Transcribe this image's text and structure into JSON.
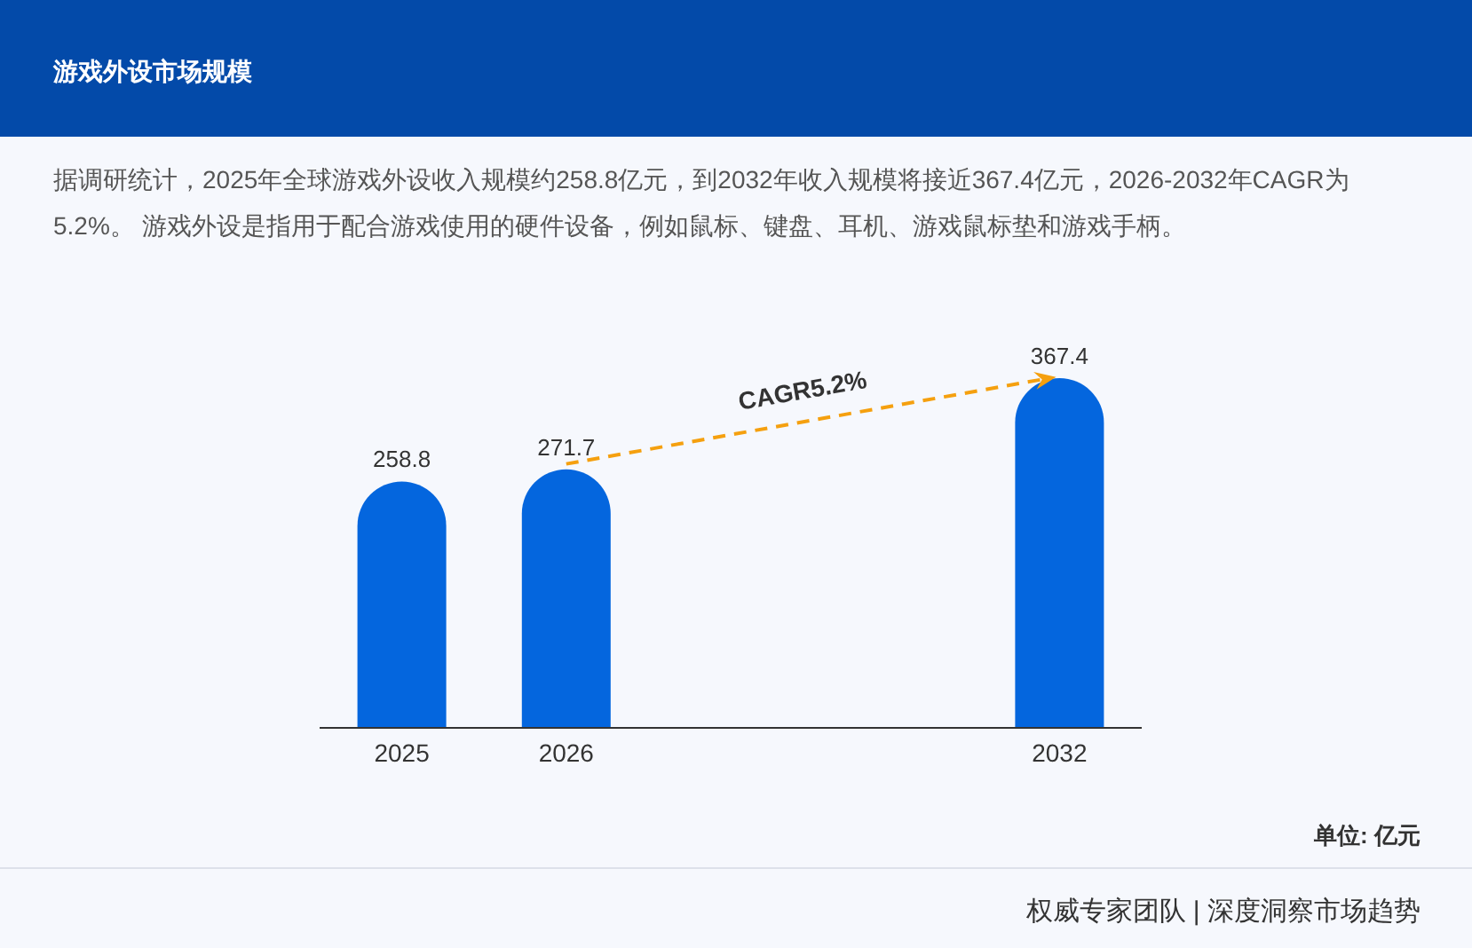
{
  "chart_data": {
    "type": "bar",
    "title": "游戏外设市场规模",
    "subtitle": "据调研统计，2025年全球游戏外设收入规模约258.8亿元，到2032年收入规模将接近367.4亿元，2026-2032年CAGR为5.2%。 游戏外设是指用于配合游戏使用的硬件设备，例如鼠标、键盘、耳机、游戏鼠标垫和游戏手柄。",
    "categories": [
      "2025",
      "2026",
      null,
      null,
      "2032"
    ],
    "values": [
      258.8,
      271.7,
      null,
      null,
      367.4
    ],
    "color": "#0466de",
    "data_labels": true,
    "annotations": [
      "CAGR5.2%",
      "单位: 亿元",
      "权威专家团队 | 深度洞察市场趋势"
    ]
  }
}
